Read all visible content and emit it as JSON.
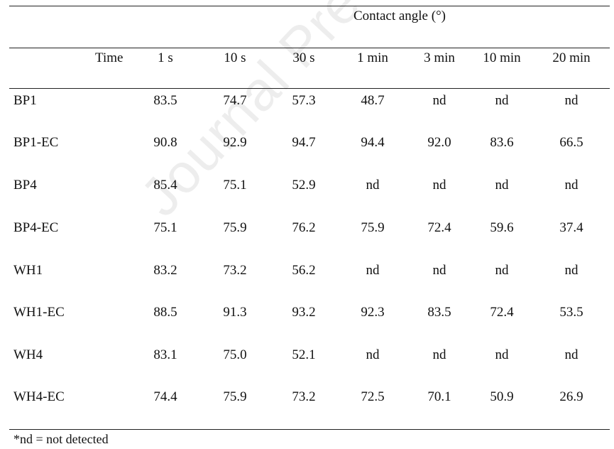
{
  "table": {
    "spanner_header": "Contact angle (°)",
    "stub_header": "Time",
    "columns": [
      "1 s",
      "10 s",
      "30 s",
      "1 min",
      "3 min",
      "10 min",
      "20 min"
    ],
    "rows": [
      {
        "label": "BP1",
        "values": [
          "83.5",
          "74.7",
          "57.3",
          "48.7",
          "nd",
          "nd",
          "nd"
        ]
      },
      {
        "label": "BP1-EC",
        "values": [
          "90.8",
          "92.9",
          "94.7",
          "94.4",
          "92.0",
          "83.6",
          "66.5"
        ]
      },
      {
        "label": "BP4",
        "values": [
          "85.4",
          "75.1",
          "52.9",
          "nd",
          "nd",
          "nd",
          "nd"
        ]
      },
      {
        "label": "BP4-EC",
        "values": [
          "75.1",
          "75.9",
          "76.2",
          "75.9",
          "72.4",
          "59.6",
          "37.4"
        ]
      },
      {
        "label": "WH1",
        "values": [
          "83.2",
          "73.2",
          "56.2",
          "nd",
          "nd",
          "nd",
          "nd"
        ]
      },
      {
        "label": "WH1-EC",
        "values": [
          "88.5",
          "91.3",
          "93.2",
          "92.3",
          "83.5",
          "72.4",
          "53.5"
        ]
      },
      {
        "label": "WH4",
        "values": [
          "83.1",
          "75.0",
          "52.1",
          "nd",
          "nd",
          "nd",
          "nd"
        ]
      },
      {
        "label": "WH4-EC",
        "values": [
          "74.4",
          "75.9",
          "73.2",
          "72.5",
          "70.1",
          "50.9",
          "26.9"
        ]
      }
    ],
    "footnote": "*nd = not detected"
  },
  "watermark": {
    "text": "Journal Pre-proof"
  }
}
